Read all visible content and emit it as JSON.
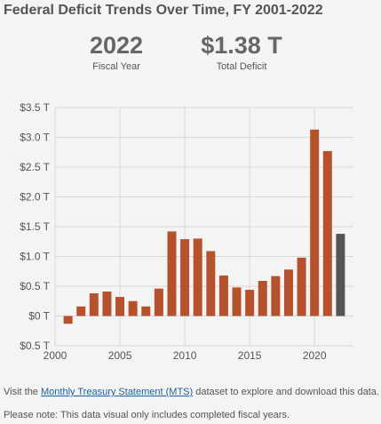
{
  "title": "Federal Deficit Trends Over Time, FY 2001-2022",
  "stats": {
    "year": {
      "value": "2022",
      "label": "Fiscal Year"
    },
    "deficit": {
      "value": "$1.38 T",
      "label": "Total Deficit"
    }
  },
  "notes": {
    "visit_prefix": "Visit the ",
    "link_text": "Monthly Treasury Statement (MTS)",
    "visit_suffix": " dataset to explore and download this data.",
    "please_note": "Please note: This data visual only includes completed fiscal years."
  },
  "colors": {
    "bar": "#b5522b",
    "highlight": "#555555",
    "grid": "#d8d8d8"
  },
  "chart_data": {
    "type": "bar",
    "title": "Federal Deficit Trends Over Time, FY 2001-2022",
    "xlabel": "",
    "ylabel": "",
    "x": [
      2001,
      2002,
      2003,
      2004,
      2005,
      2006,
      2007,
      2008,
      2009,
      2010,
      2011,
      2012,
      2013,
      2014,
      2015,
      2016,
      2017,
      2018,
      2019,
      2020,
      2021,
      2022
    ],
    "values": [
      -0.13,
      0.16,
      0.38,
      0.41,
      0.32,
      0.25,
      0.16,
      0.46,
      1.42,
      1.29,
      1.3,
      1.09,
      0.68,
      0.48,
      0.44,
      0.59,
      0.67,
      0.78,
      0.98,
      3.13,
      2.77,
      1.38
    ],
    "highlight": 2022,
    "ylim": [
      -0.5,
      3.5
    ],
    "yticks": [
      3.5,
      3.0,
      2.5,
      2.0,
      1.5,
      1.0,
      0.5,
      0,
      -0.5
    ],
    "ytick_labels": [
      "$3.5 T",
      "$3.0 T",
      "$2.5 T",
      "$2.0 T",
      "$1.5 T",
      "$1.0 T",
      "$0.5 T",
      "$0 T",
      "$0.5 T"
    ],
    "xticks": [
      2000,
      2005,
      2010,
      2015,
      2020
    ],
    "xtick_labels": [
      "2000",
      "2005",
      "2010",
      "2015",
      "2020"
    ],
    "xlim": [
      2000,
      2023
    ],
    "grid": true
  }
}
